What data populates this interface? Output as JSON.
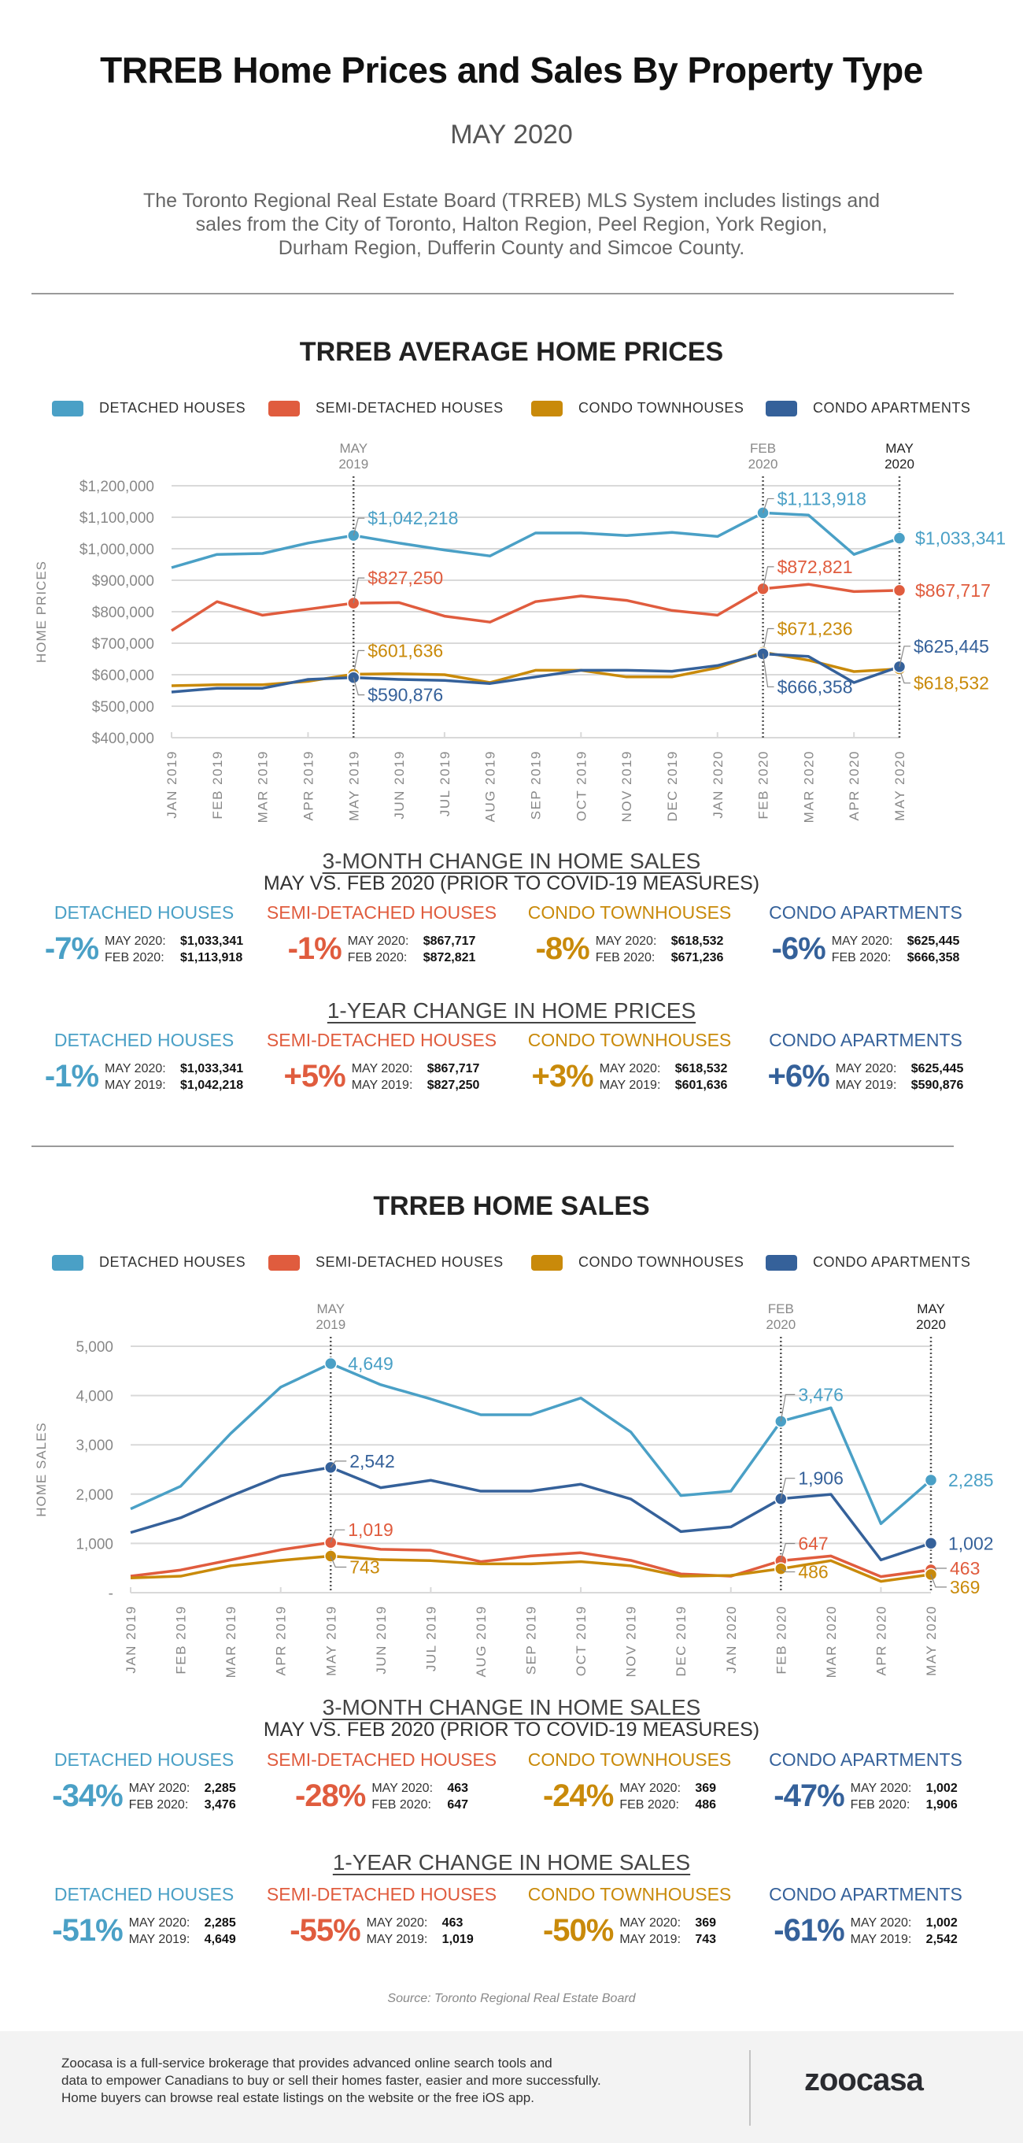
{
  "header": {
    "title": "TRREB Home Prices and Sales By Property Type",
    "subtitle": "MAY 2020",
    "intro_lines": [
      "The Toronto Regional Real Estate Board (TRREB) MLS System includes listings and",
      "sales from the City of Toronto, Halton Region, Peel Region, York Region,",
      "Durham Region, Dufferin County and Simcoe County."
    ]
  },
  "colors": {
    "detached": "#4aa0c6",
    "semi": "#e05c3e",
    "townhouse": "#c98a0a",
    "apartment": "#35619a",
    "grid": "#d9d9d9",
    "axis_text": "#888888"
  },
  "legend": [
    "DETACHED HOUSES",
    "SEMI-DETACHED HOUSES",
    "CONDO TOWNHOUSES",
    "CONDO APARTMENTS"
  ],
  "markers": {
    "may2019": [
      "MAY",
      "2019"
    ],
    "feb2020": [
      "FEB",
      "2020"
    ],
    "may2020": [
      "MAY",
      "2020"
    ]
  },
  "chart_data": [
    {
      "type": "line",
      "title": "TRREB AVERAGE HOME PRICES",
      "xlabel": "",
      "ylabel": "HOME PRICES",
      "ylim": [
        400000,
        1200000
      ],
      "yticks": [
        400000,
        500000,
        600000,
        700000,
        800000,
        900000,
        1000000,
        1100000,
        1200000
      ],
      "ytick_labels": [
        "$400,000",
        "$500,000",
        "$600,000",
        "$700,000",
        "$800,000",
        "$900,000",
        "$1,000,000",
        "$1,100,000",
        "$1,200,000"
      ],
      "grid": true,
      "legend_position": "top",
      "x": [
        "JAN 2019",
        "FEB 2019",
        "MAR 2019",
        "APR 2019",
        "MAY 2019",
        "JUN 2019",
        "JUL 2019",
        "AUG 2019",
        "SEP 2019",
        "OCT 2019",
        "NOV 2019",
        "DEC 2019",
        "JAN 2020",
        "FEB 2020",
        "MAR 2020",
        "APR 2020",
        "MAY 2020"
      ],
      "series": [
        {
          "name": "DETACHED HOUSES",
          "key": "detached",
          "values": [
            940000,
            982000,
            985000,
            1018000,
            1042218,
            1018000,
            996000,
            977000,
            1050000,
            1050000,
            1042000,
            1052000,
            1039000,
            1113918,
            1107000,
            982000,
            1033341
          ]
        },
        {
          "name": "SEMI-DETACHED HOUSES",
          "key": "semi",
          "values": [
            740000,
            832000,
            789000,
            808000,
            827250,
            829000,
            786000,
            767000,
            832000,
            850000,
            836000,
            804000,
            789000,
            872821,
            887000,
            864000,
            867717
          ]
        },
        {
          "name": "CONDO TOWNHOUSES",
          "key": "townhouse",
          "values": [
            565000,
            568000,
            568000,
            579000,
            601636,
            603000,
            600000,
            575000,
            614000,
            614000,
            593000,
            593000,
            622000,
            671236,
            646000,
            610000,
            618532
          ]
        },
        {
          "name": "CONDO APARTMENTS",
          "key": "apartment",
          "values": [
            545000,
            557000,
            557000,
            585000,
            590876,
            585000,
            582000,
            572000,
            593000,
            614000,
            614000,
            611000,
            629000,
            666358,
            658000,
            575000,
            625445
          ]
        }
      ],
      "annotations": [
        {
          "series": "detached",
          "x": "MAY 2019",
          "label": "$1,042,218"
        },
        {
          "series": "semi",
          "x": "MAY 2019",
          "label": "$827,250"
        },
        {
          "series": "townhouse",
          "x": "MAY 2019",
          "label": "$601,636"
        },
        {
          "series": "apartment",
          "x": "MAY 2019",
          "label": "$590,876"
        },
        {
          "series": "detached",
          "x": "FEB 2020",
          "label": "$1,113,918"
        },
        {
          "series": "semi",
          "x": "FEB 2020",
          "label": "$872,821"
        },
        {
          "series": "townhouse",
          "x": "FEB 2020",
          "label": "$671,236"
        },
        {
          "series": "apartment",
          "x": "FEB 2020",
          "label": "$666,358"
        },
        {
          "series": "detached",
          "x": "MAY 2020",
          "label": "$1,033,341"
        },
        {
          "series": "semi",
          "x": "MAY 2020",
          "label": "$867,717"
        },
        {
          "series": "townhouse",
          "x": "MAY 2020",
          "label": "$618,532"
        },
        {
          "series": "apartment",
          "x": "MAY 2020",
          "label": "$625,445"
        }
      ]
    },
    {
      "type": "line",
      "title": "TRREB HOME SALES",
      "xlabel": "",
      "ylabel": "HOME SALES",
      "ylim": [
        0,
        5000
      ],
      "yticks": [
        0,
        1000,
        2000,
        3000,
        4000,
        5000
      ],
      "ytick_labels": [
        "-",
        "1,000",
        "2,000",
        "3,000",
        "4,000",
        "5,000"
      ],
      "grid": true,
      "legend_position": "top",
      "x": [
        "JAN 2019",
        "FEB 2019",
        "MAR 2019",
        "APR 2019",
        "MAY 2019",
        "JUN 2019",
        "JUL 2019",
        "AUG 2019",
        "SEP 2019",
        "OCT 2019",
        "NOV 2019",
        "DEC 2019",
        "JAN 2020",
        "FEB 2020",
        "MAR 2020",
        "APR 2020",
        "MAY 2020"
      ],
      "series": [
        {
          "name": "DETACHED HOUSES",
          "key": "detached",
          "values": [
            1700,
            2160,
            3230,
            4170,
            4649,
            4220,
            3930,
            3610,
            3610,
            3950,
            3260,
            1970,
            2060,
            3476,
            3750,
            1400,
            2285
          ]
        },
        {
          "name": "SEMI-DETACHED HOUSES",
          "key": "semi",
          "values": [
            335,
            460,
            665,
            870,
            1019,
            880,
            860,
            630,
            745,
            810,
            655,
            380,
            335,
            647,
            745,
            325,
            463
          ]
        },
        {
          "name": "CONDO TOWNHOUSES",
          "key": "townhouse",
          "values": [
            300,
            335,
            545,
            655,
            743,
            670,
            650,
            585,
            585,
            630,
            545,
            335,
            350,
            486,
            650,
            230,
            369
          ]
        },
        {
          "name": "CONDO APARTMENTS",
          "key": "apartment",
          "values": [
            1220,
            1520,
            1960,
            2370,
            2542,
            2130,
            2280,
            2060,
            2060,
            2200,
            1900,
            1240,
            1335,
            1906,
            1995,
            665,
            1002
          ]
        }
      ],
      "annotations": [
        {
          "series": "detached",
          "x": "MAY 2019",
          "label": "4,649"
        },
        {
          "series": "apartment",
          "x": "MAY 2019",
          "label": "2,542"
        },
        {
          "series": "semi",
          "x": "MAY 2019",
          "label": "1,019"
        },
        {
          "series": "townhouse",
          "x": "MAY 2019",
          "label": "743"
        },
        {
          "series": "detached",
          "x": "FEB 2020",
          "label": "3,476"
        },
        {
          "series": "apartment",
          "x": "FEB 2020",
          "label": "1,906"
        },
        {
          "series": "semi",
          "x": "FEB 2020",
          "label": "647"
        },
        {
          "series": "townhouse",
          "x": "FEB 2020",
          "label": "486"
        },
        {
          "series": "detached",
          "x": "MAY 2020",
          "label": "2,285"
        },
        {
          "series": "apartment",
          "x": "MAY 2020",
          "label": "1,002"
        },
        {
          "series": "semi",
          "x": "MAY 2020",
          "label": "463"
        },
        {
          "series": "townhouse",
          "x": "MAY 2020",
          "label": "369"
        }
      ]
    }
  ],
  "prices_summary": {
    "three_month": {
      "heading": "3-MONTH CHANGE IN HOME SALES",
      "subheading": "MAY VS. FEB 2020 (PRIOR TO COVID-19 MEASURES)",
      "cards": [
        {
          "key": "detached",
          "category": "DETACHED HOUSES",
          "pct": "-7%",
          "line1_label": "MAY 2020:",
          "line1_value": "$1,033,341",
          "line2_label": "FEB 2020:",
          "line2_value": "$1,113,918"
        },
        {
          "key": "semi",
          "category": "SEMI-DETACHED HOUSES",
          "pct": "-1%",
          "line1_label": "MAY 2020:",
          "line1_value": "$867,717",
          "line2_label": "FEB 2020:",
          "line2_value": "$872,821"
        },
        {
          "key": "townhouse",
          "category": "CONDO TOWNHOUSES",
          "pct": "-8%",
          "line1_label": "MAY 2020:",
          "line1_value": "$618,532",
          "line2_label": "FEB 2020:",
          "line2_value": "$671,236"
        },
        {
          "key": "apartment",
          "category": "CONDO APARTMENTS",
          "pct": "-6%",
          "line1_label": "MAY 2020:",
          "line1_value": "$625,445",
          "line2_label": "FEB 2020:",
          "line2_value": "$666,358"
        }
      ]
    },
    "one_year": {
      "heading": "1-YEAR CHANGE IN HOME PRICES",
      "cards": [
        {
          "key": "detached",
          "category": "DETACHED HOUSES",
          "pct": "-1%",
          "line1_label": "MAY 2020:",
          "line1_value": "$1,033,341",
          "line2_label": "MAY 2019:",
          "line2_value": "$1,042,218"
        },
        {
          "key": "semi",
          "category": "SEMI-DETACHED HOUSES",
          "pct": "+5%",
          "line1_label": "MAY 2020:",
          "line1_value": "$867,717",
          "line2_label": "MAY 2019:",
          "line2_value": "$827,250"
        },
        {
          "key": "townhouse",
          "category": "CONDO TOWNHOUSES",
          "pct": "+3%",
          "line1_label": "MAY 2020:",
          "line1_value": "$618,532",
          "line2_label": "MAY 2019:",
          "line2_value": "$601,636"
        },
        {
          "key": "apartment",
          "category": "CONDO APARTMENTS",
          "pct": "+6%",
          "line1_label": "MAY 2020:",
          "line1_value": "$625,445",
          "line2_label": "MAY 2019:",
          "line2_value": "$590,876"
        }
      ]
    }
  },
  "sales_summary": {
    "three_month": {
      "heading": "3-MONTH CHANGE IN HOME SALES",
      "subheading": "MAY VS. FEB 2020 (PRIOR TO COVID-19 MEASURES)",
      "cards": [
        {
          "key": "detached",
          "category": "DETACHED HOUSES",
          "pct": "-34%",
          "line1_label": "MAY 2020:",
          "line1_value": "2,285",
          "line2_label": "FEB 2020:",
          "line2_value": "3,476"
        },
        {
          "key": "semi",
          "category": "SEMI-DETACHED HOUSES",
          "pct": "-28%",
          "line1_label": "MAY 2020:",
          "line1_value": "463",
          "line2_label": "FEB 2020:",
          "line2_value": "647"
        },
        {
          "key": "townhouse",
          "category": "CONDO TOWNHOUSES",
          "pct": "-24%",
          "line1_label": "MAY 2020:",
          "line1_value": "369",
          "line2_label": "FEB 2020:",
          "line2_value": "486"
        },
        {
          "key": "apartment",
          "category": "CONDO APARTMENTS",
          "pct": "-47%",
          "line1_label": "MAY 2020:",
          "line1_value": "1,002",
          "line2_label": "FEB 2020:",
          "line2_value": "1,906"
        }
      ]
    },
    "one_year": {
      "heading": "1-YEAR CHANGE IN HOME SALES",
      "cards": [
        {
          "key": "detached",
          "category": "DETACHED HOUSES",
          "pct": "-51%",
          "line1_label": "MAY 2020:",
          "line1_value": "2,285",
          "line2_label": "MAY 2019:",
          "line2_value": "4,649"
        },
        {
          "key": "semi",
          "category": "SEMI-DETACHED HOUSES",
          "pct": "-55%",
          "line1_label": "MAY 2020:",
          "line1_value": "463",
          "line2_label": "MAY 2019:",
          "line2_value": "1,019"
        },
        {
          "key": "townhouse",
          "category": "CONDO TOWNHOUSES",
          "pct": "-50%",
          "line1_label": "MAY 2020:",
          "line1_value": "369",
          "line2_label": "MAY 2019:",
          "line2_value": "743"
        },
        {
          "key": "apartment",
          "category": "CONDO APARTMENTS",
          "pct": "-61%",
          "line1_label": "MAY 2020:",
          "line1_value": "1,002",
          "line2_label": "MAY 2019:",
          "line2_value": "2,542"
        }
      ]
    }
  },
  "source": "Source: Toronto Regional Real Estate Board",
  "footer": {
    "lines": [
      "Zoocasa is a full-service brokerage that provides advanced online search tools and",
      "data to empower Canadians to buy or sell their homes faster, easier and more successfully.",
      "Home buyers can browse real estate listings on the website or the free iOS app."
    ],
    "logo": "zoocasa"
  }
}
